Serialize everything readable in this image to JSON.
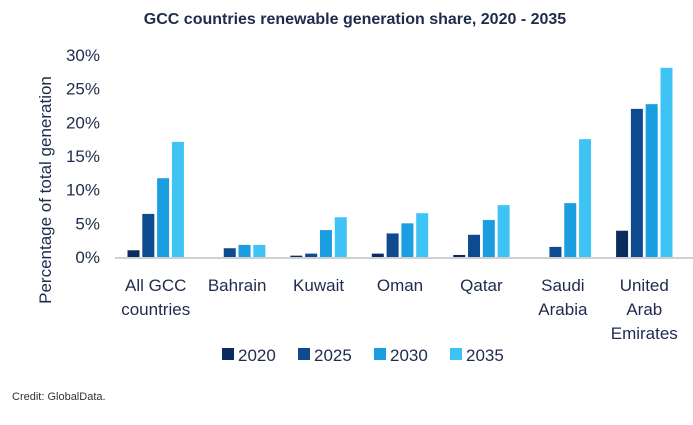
{
  "chart_data": {
    "type": "bar",
    "title": "GCC countries renewable generation share, 2020 - 2035",
    "ylabel": "Percentage of total generation",
    "xlabel": "",
    "ylim": [
      0,
      30
    ],
    "yticks": [
      "0%",
      "5%",
      "10%",
      "15%",
      "20%",
      "25%",
      "30%"
    ],
    "grid": false,
    "legend_position": "bottom",
    "categories": [
      [
        "All GCC",
        "countries"
      ],
      [
        "Bahrain"
      ],
      [
        "Kuwait"
      ],
      [
        "Oman"
      ],
      [
        "Qatar"
      ],
      [
        "Saudi",
        "Arabia"
      ],
      [
        "United",
        "Arab",
        "Emirates"
      ]
    ],
    "series": [
      {
        "name": "2020",
        "color": "#0b2a5e",
        "values": [
          1.0,
          0,
          0.2,
          0.5,
          0.3,
          0,
          3.9
        ]
      },
      {
        "name": "2025",
        "color": "#0d4a8f",
        "values": [
          6.4,
          1.3,
          0.5,
          3.5,
          3.3,
          1.5,
          22.0
        ]
      },
      {
        "name": "2030",
        "color": "#1a9ee0",
        "values": [
          11.7,
          1.8,
          4.0,
          5.0,
          5.5,
          8.0,
          22.7
        ]
      },
      {
        "name": "2035",
        "color": "#3ec3f5",
        "values": [
          17.1,
          1.8,
          5.9,
          6.5,
          7.7,
          17.5,
          28.1
        ]
      }
    ]
  },
  "credit": "Credit: GlobalData."
}
